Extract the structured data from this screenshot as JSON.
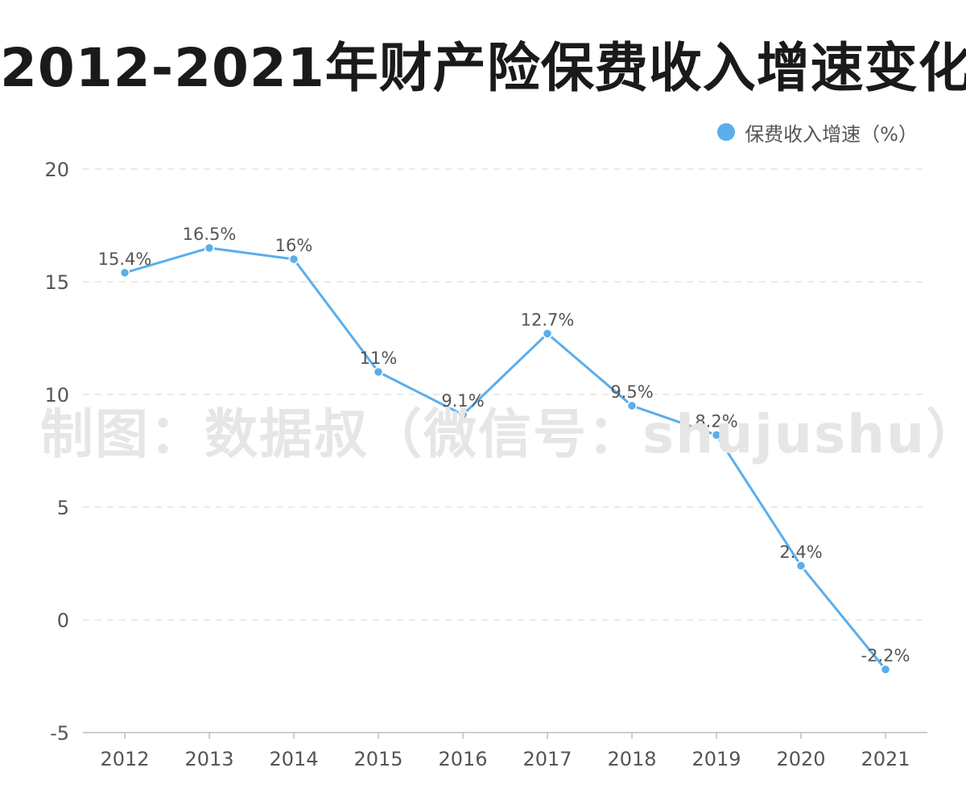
{
  "chart_data": {
    "type": "line",
    "title": "2012-2021年财产险保费收入增速变化",
    "categories": [
      "2012",
      "2013",
      "2014",
      "2015",
      "2016",
      "2017",
      "2018",
      "2019",
      "2020",
      "2021"
    ],
    "series": [
      {
        "name": "保费收入增速（%）",
        "values": [
          15.4,
          16.5,
          16,
          11,
          9.1,
          12.7,
          9.5,
          8.2,
          2.4,
          -2.2
        ],
        "labels": [
          "15.4%",
          "16.5%",
          "16%",
          "11%",
          "9.1%",
          "12.7%",
          "9.5%",
          "8.2%",
          "2.4%",
          "-2.2%"
        ],
        "color": "#5aaeeb"
      }
    ],
    "y_ticks": [
      "20",
      "15",
      "10",
      "5",
      "0",
      "-5"
    ],
    "ylim": [
      -5,
      20
    ],
    "grid": true,
    "legend_position": "top-right"
  },
  "watermark": "制图：数据叔（微信号：shujushu）"
}
